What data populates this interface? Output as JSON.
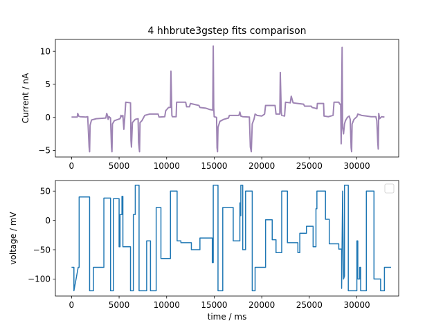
{
  "chart_data": [
    {
      "type": "line",
      "title": "4 hhbrute3gstep fits comparison",
      "xlabel": "",
      "ylabel": "Current / nA",
      "xlim": [
        -1700,
        34400
      ],
      "ylim": [
        -6,
        11.8
      ],
      "xticks": [
        0,
        5000,
        10000,
        15000,
        20000,
        25000,
        30000
      ],
      "yticks": [
        -5,
        0,
        5,
        10
      ],
      "grid": false,
      "legend": "none",
      "series": [
        {
          "color": "#9e84b4",
          "points": [
            [
              0,
              0.05
            ],
            [
              600,
              0.05
            ],
            [
              650,
              0.6
            ],
            [
              750,
              0.2
            ],
            [
              900,
              0.1
            ],
            [
              1500,
              0.05
            ],
            [
              1700,
              0.1
            ],
            [
              1850,
              -4.5
            ],
            [
              1900,
              -5.2
            ],
            [
              1950,
              -1.2
            ],
            [
              2100,
              -0.4
            ],
            [
              2600,
              -0.2
            ],
            [
              3600,
              -0.1
            ],
            [
              3700,
              0.6
            ],
            [
              3800,
              0.2
            ],
            [
              3850,
              -0.3
            ],
            [
              3950,
              0.1
            ],
            [
              4100,
              -0.1
            ],
            [
              4200,
              -4.5
            ],
            [
              4250,
              -5.2
            ],
            [
              4300,
              -1.0
            ],
            [
              4500,
              -0.5
            ],
            [
              4900,
              -0.3
            ],
            [
              5100,
              -0.2
            ],
            [
              5200,
              0.3
            ],
            [
              5300,
              0.1
            ],
            [
              5400,
              0.3
            ],
            [
              5500,
              -1.8
            ],
            [
              5600,
              0.1
            ],
            [
              5700,
              2.3
            ],
            [
              6200,
              2.2
            ],
            [
              6250,
              -3.5
            ],
            [
              6300,
              -4.5
            ],
            [
              6400,
              -0.8
            ],
            [
              6700,
              -0.3
            ],
            [
              7000,
              -0.2
            ],
            [
              7050,
              -3.8
            ],
            [
              7150,
              -5.2
            ],
            [
              7200,
              -0.8
            ],
            [
              7400,
              -0.5
            ],
            [
              7700,
              0.3
            ],
            [
              8200,
              0.5
            ],
            [
              9100,
              0.5
            ],
            [
              9200,
              0.05
            ],
            [
              9800,
              0.1
            ],
            [
              9900,
              1.0
            ],
            [
              10200,
              1.5
            ],
            [
              10400,
              1.5
            ],
            [
              10450,
              7.0
            ],
            [
              10550,
              0.3
            ],
            [
              10600,
              0.1
            ],
            [
              11000,
              0.1
            ],
            [
              11050,
              2.3
            ],
            [
              11600,
              2.3
            ],
            [
              12000,
              2.3
            ],
            [
              12100,
              1.6
            ],
            [
              12400,
              1.6
            ],
            [
              12500,
              2.1
            ],
            [
              13400,
              1.8
            ],
            [
              13500,
              1.5
            ],
            [
              14100,
              1.4
            ],
            [
              14500,
              1.2
            ],
            [
              14850,
              1.1
            ],
            [
              14900,
              10.8
            ],
            [
              14950,
              1.5
            ],
            [
              15000,
              0.1
            ],
            [
              15250,
              0.0
            ],
            [
              15300,
              -4.6
            ],
            [
              15350,
              -5.2
            ],
            [
              15400,
              -1.5
            ],
            [
              15600,
              -0.6
            ],
            [
              16000,
              -0.3
            ],
            [
              16500,
              -0.1
            ],
            [
              16600,
              0.3
            ],
            [
              17600,
              0.3
            ],
            [
              17700,
              0.8
            ],
            [
              17800,
              0.2
            ],
            [
              18000,
              0.1
            ],
            [
              18700,
              0.05
            ],
            [
              18800,
              -4.5
            ],
            [
              18900,
              -5.2
            ],
            [
              19000,
              -1.0
            ],
            [
              19200,
              -0.2
            ],
            [
              19300,
              0.5
            ],
            [
              19500,
              0.3
            ],
            [
              20000,
              0.2
            ],
            [
              20300,
              0.5
            ],
            [
              20400,
              1.8
            ],
            [
              21000,
              1.8
            ],
            [
              21400,
              1.8
            ],
            [
              21500,
              0.5
            ],
            [
              21900,
              0.5
            ],
            [
              21950,
              6.8
            ],
            [
              22050,
              0.8
            ],
            [
              22100,
              0.3
            ],
            [
              22400,
              0.2
            ],
            [
              22500,
              2.3
            ],
            [
              23000,
              2.2
            ],
            [
              23100,
              3.2
            ],
            [
              23300,
              2.2
            ],
            [
              23800,
              2.1
            ],
            [
              24400,
              2.0
            ],
            [
              24500,
              1.7
            ],
            [
              25200,
              1.7
            ],
            [
              25300,
              1.5
            ],
            [
              25600,
              1.4
            ],
            [
              25800,
              1.3
            ],
            [
              25850,
              2.1
            ],
            [
              26500,
              2.1
            ],
            [
              26550,
              0.2
            ],
            [
              27000,
              0.1
            ],
            [
              27500,
              0.3
            ],
            [
              27600,
              2.3
            ],
            [
              28100,
              2.3
            ],
            [
              28200,
              2.0
            ],
            [
              28300,
              2.0
            ],
            [
              28350,
              -4.0
            ],
            [
              28450,
              10.6
            ],
            [
              28500,
              -1.5
            ],
            [
              28600,
              -2.5
            ],
            [
              28700,
              -1.0
            ],
            [
              28800,
              -0.5
            ],
            [
              29000,
              0.0
            ],
            [
              29200,
              0.2
            ],
            [
              29300,
              -0.3
            ],
            [
              29400,
              -4.6
            ],
            [
              29450,
              -5.2
            ],
            [
              29500,
              -1.0
            ],
            [
              29700,
              -0.3
            ],
            [
              30000,
              0.1
            ],
            [
              30100,
              0.5
            ],
            [
              30500,
              0.3
            ],
            [
              31000,
              0.2
            ],
            [
              31500,
              0.1
            ],
            [
              32000,
              0.1
            ],
            [
              32100,
              -0.5
            ],
            [
              32200,
              -3.8
            ],
            [
              32250,
              -4.8
            ],
            [
              32300,
              0.6
            ],
            [
              32400,
              -0.2
            ],
            [
              32600,
              0.1
            ],
            [
              32900,
              0.05
            ]
          ]
        }
      ]
    },
    {
      "type": "line",
      "title": "",
      "xlabel": "time / ms",
      "ylabel": "voltage / mV",
      "xlim": [
        -1700,
        34400
      ],
      "ylim": [
        -129,
        68
      ],
      "xticks": [
        0,
        5000,
        10000,
        15000,
        20000,
        25000,
        30000
      ],
      "yticks": [
        -100,
        -50,
        0,
        50
      ],
      "grid": false,
      "legend": "top-right",
      "series": [
        {
          "color": "#1f77b4",
          "points": [
            [
              0,
              -80
            ],
            [
              250,
              -80
            ],
            [
              250,
              -120
            ],
            [
              700,
              -80
            ],
            [
              800,
              -80
            ],
            [
              800,
              40
            ],
            [
              1900,
              40
            ],
            [
              1900,
              -120
            ],
            [
              2300,
              -120
            ],
            [
              2300,
              -80
            ],
            [
              3400,
              -80
            ],
            [
              3400,
              38
            ],
            [
              4100,
              38
            ],
            [
              4100,
              -120
            ],
            [
              4400,
              -120
            ],
            [
              4400,
              37
            ],
            [
              5000,
              37
            ],
            [
              5000,
              -45
            ],
            [
              5100,
              -45
            ],
            [
              5100,
              10
            ],
            [
              5300,
              10
            ],
            [
              5300,
              41
            ],
            [
              5400,
              41
            ],
            [
              5400,
              -45
            ],
            [
              6200,
              -45
            ],
            [
              6200,
              -120
            ],
            [
              6500,
              -120
            ],
            [
              6500,
              10
            ],
            [
              6700,
              10
            ],
            [
              6700,
              60
            ],
            [
              7100,
              60
            ],
            [
              7100,
              -120
            ],
            [
              7900,
              -120
            ],
            [
              7900,
              -35
            ],
            [
              8300,
              -35
            ],
            [
              8300,
              -120
            ],
            [
              8900,
              -120
            ],
            [
              8900,
              22
            ],
            [
              9400,
              22
            ],
            [
              9400,
              -65
            ],
            [
              10400,
              -65
            ],
            [
              10400,
              50
            ],
            [
              11100,
              50
            ],
            [
              11100,
              -35
            ],
            [
              11500,
              -35
            ],
            [
              11500,
              -38
            ],
            [
              12600,
              -38
            ],
            [
              12600,
              -50
            ],
            [
              13500,
              -50
            ],
            [
              13500,
              -30
            ],
            [
              14800,
              -30
            ],
            [
              14800,
              -72
            ],
            [
              14900,
              -72
            ],
            [
              14900,
              60
            ],
            [
              15400,
              60
            ],
            [
              15400,
              -120
            ],
            [
              15900,
              -120
            ],
            [
              15900,
              22
            ],
            [
              17000,
              22
            ],
            [
              17000,
              -35
            ],
            [
              17700,
              -35
            ],
            [
              17700,
              30
            ],
            [
              17800,
              30
            ],
            [
              17800,
              8
            ],
            [
              17800,
              60
            ],
            [
              18000,
              60
            ],
            [
              18000,
              -50
            ],
            [
              18300,
              -50
            ],
            [
              18300,
              50
            ],
            [
              19000,
              50
            ],
            [
              19000,
              -120
            ],
            [
              19300,
              -120
            ],
            [
              19300,
              -120
            ],
            [
              19300,
              -80
            ],
            [
              20400,
              -80
            ],
            [
              20400,
              1
            ],
            [
              21100,
              1
            ],
            [
              21100,
              -33
            ],
            [
              21500,
              -33
            ],
            [
              21500,
              -55
            ],
            [
              22100,
              -55
            ],
            [
              22100,
              50
            ],
            [
              22700,
              50
            ],
            [
              22700,
              -38
            ],
            [
              23800,
              -38
            ],
            [
              23800,
              -55
            ],
            [
              24000,
              -55
            ],
            [
              24000,
              -22
            ],
            [
              24700,
              -22
            ],
            [
              24700,
              -10
            ],
            [
              25400,
              -10
            ],
            [
              25400,
              -45
            ],
            [
              25700,
              -45
            ],
            [
              25700,
              20
            ],
            [
              25800,
              20
            ],
            [
              25800,
              50
            ],
            [
              26700,
              50
            ],
            [
              26700,
              2
            ],
            [
              27100,
              2
            ],
            [
              27100,
              -40
            ],
            [
              28100,
              -40
            ],
            [
              28100,
              -49
            ],
            [
              28400,
              -49
            ],
            [
              28400,
              -116
            ],
            [
              28500,
              50
            ],
            [
              28600,
              -100
            ],
            [
              28700,
              -95
            ],
            [
              28700,
              60
            ],
            [
              29100,
              60
            ],
            [
              29100,
              -120
            ],
            [
              30000,
              -120
            ],
            [
              30000,
              -35
            ],
            [
              30100,
              -35
            ],
            [
              30100,
              -80
            ],
            [
              30100,
              -80
            ],
            [
              30100,
              -100
            ],
            [
              30300,
              -100
            ],
            [
              30300,
              -80
            ],
            [
              30400,
              -80
            ],
            [
              30400,
              -120
            ],
            [
              31000,
              -120
            ],
            [
              31000,
              50
            ],
            [
              31800,
              50
            ],
            [
              31800,
              -100
            ],
            [
              32500,
              -100
            ],
            [
              32500,
              -120
            ],
            [
              32900,
              -120
            ],
            [
              32900,
              -80
            ],
            [
              33600,
              -80
            ]
          ]
        }
      ]
    }
  ]
}
